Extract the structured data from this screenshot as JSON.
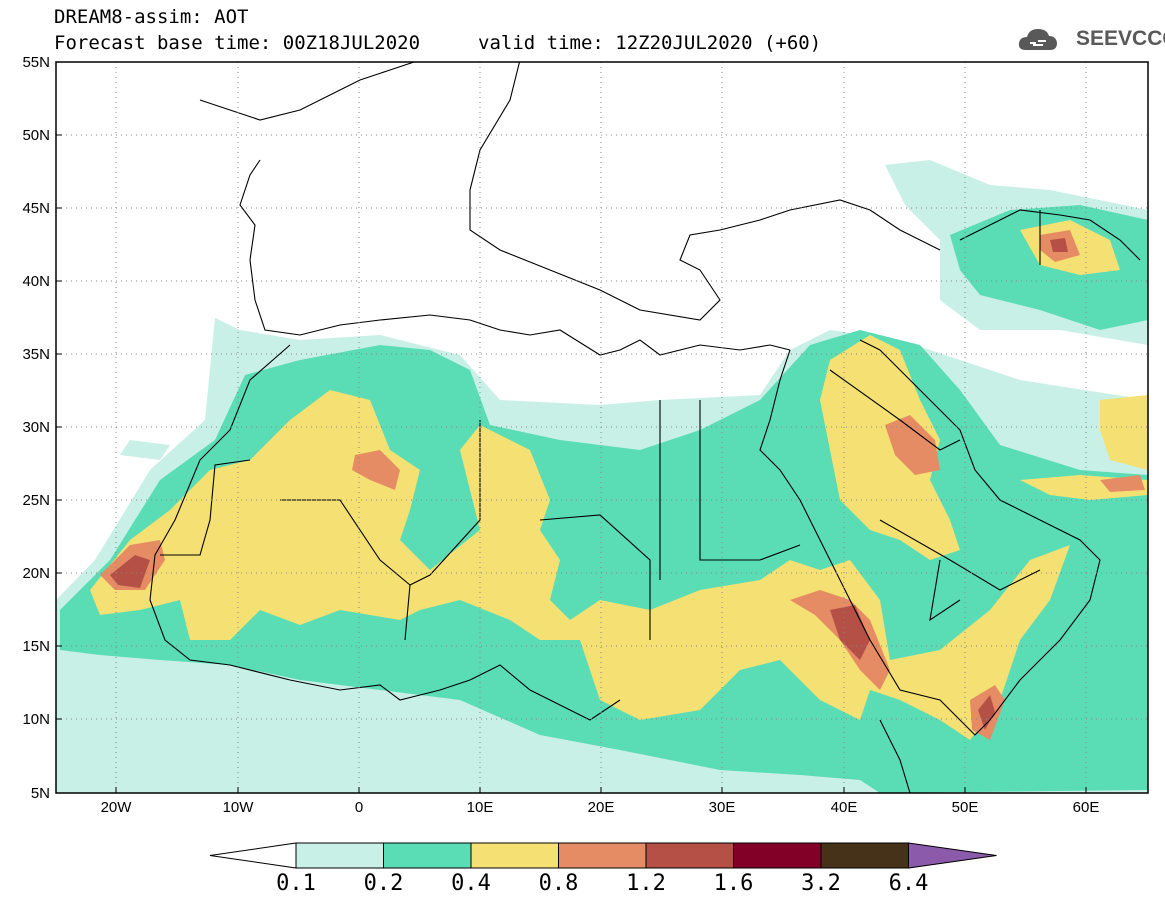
{
  "header": {
    "model_line": "DREAM8-assim: AOT",
    "base_line": "Forecast base time: 00Z18JUL2020",
    "valid_line": "valid time: 12Z20JUL2020 (+60)"
  },
  "logo": {
    "text": "SEEVCCC",
    "icon": "cloud-icon"
  },
  "map": {
    "region": "North Africa, Middle East and Europe",
    "lon_range": [
      -25,
      65
    ],
    "lat_range": [
      5,
      55
    ],
    "lat_ticks": [
      "55N",
      "50N",
      "45N",
      "40N",
      "35N",
      "30N",
      "25N",
      "20N",
      "15N",
      "10N",
      "5N"
    ],
    "lon_ticks": [
      "20W",
      "10W",
      "0",
      "10E",
      "20E",
      "30E",
      "40E",
      "50E",
      "60E"
    ],
    "grid": "dotted"
  },
  "colorbar": {
    "labels": [
      "0.1",
      "0.2",
      "0.4",
      "0.8",
      "1.2",
      "1.6",
      "3.2",
      "6.4"
    ],
    "colors": [
      "#c8f0e6",
      "#5adcb4",
      "#f5e173",
      "#e68c64",
      "#b45046",
      "#820028",
      "#463218",
      "#8c5aaa"
    ]
  }
}
